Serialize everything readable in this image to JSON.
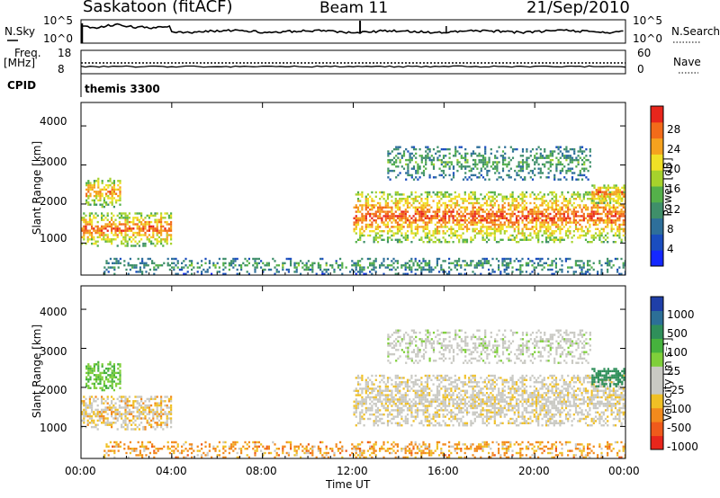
{
  "header": {
    "station": "Saskatoon (fitACF)",
    "beam": "Beam 11",
    "date": "21/Sep/2010"
  },
  "summary_panels": {
    "left_labels": {
      "nsky": "N.Sky",
      "freq": "Freq.",
      "freq_unit": "[MHz]",
      "cpid": "CPID"
    },
    "right_labels": {
      "nsearch": "N.Search",
      "nave": "Nave"
    },
    "noise_ticks_left": [
      "10^5",
      "10^0"
    ],
    "noise_ticks_right": [
      "10^5",
      "10^0"
    ],
    "freq_ticks_left": [
      "18",
      "8"
    ],
    "nave_ticks_right": [
      "60",
      "0"
    ],
    "cpid_text": "themis 3300"
  },
  "power_panel": {
    "colorbar_label": "Power [dB]",
    "colorbar_ticks": [
      "28",
      "24",
      "20",
      "16",
      "12",
      "8",
      "4"
    ],
    "colors": [
      "#1428ff",
      "#1a4dbf",
      "#2e6f9a",
      "#3f8f6a",
      "#54b04a",
      "#a6d22c",
      "#f0e026",
      "#f5a21e",
      "#f26b1a",
      "#e8261c"
    ]
  },
  "velocity_panel": {
    "colorbar_label": "Velocity [m s⁻¹]",
    "colorbar_ticks": [
      "1000",
      "500",
      "100",
      "25",
      "-25",
      "-100",
      "-500",
      "-1000"
    ],
    "colors": [
      "#1f3fa8",
      "#2c6f97",
      "#2f8f5a",
      "#46b23d",
      "#7fcf3a",
      "#c9c9c3",
      "#c9c9c3",
      "#f0c025",
      "#f28a1d",
      "#ef5a1b",
      "#e8261c"
    ]
  },
  "axes": {
    "ylabel": "Slant Range [km]",
    "y_ticks": [
      "1000",
      "2000",
      "3000",
      "4000"
    ],
    "x_ticks": [
      "00:00",
      "04:00",
      "08:00",
      "12:00",
      "16:00",
      "20:00",
      "00:00"
    ],
    "xlabel": "Time UT"
  },
  "chart_data": {
    "type": "heatmap",
    "title": "Saskatoon (fitACF) Beam 11 21/Sep/2010",
    "xlabel": "Time UT",
    "ylabel": "Slant Range [km]",
    "xlim": [
      0,
      24
    ],
    "ylim": [
      180,
      4600
    ],
    "x_ticks": [
      0,
      4,
      8,
      12,
      16,
      20,
      24
    ],
    "y_ticks": [
      1000,
      2000,
      3000,
      4000
    ],
    "panels": [
      {
        "name": "Power [dB]",
        "scale": [
          0,
          32
        ],
        "colorbar_ticks": [
          4,
          8,
          12,
          16,
          20,
          24,
          28
        ]
      },
      {
        "name": "Velocity [m s⁻¹]",
        "scale": [
          -1000,
          1000
        ],
        "colorbar_ticks": [
          -1000,
          -500,
          -100,
          -25,
          25,
          100,
          500,
          1000
        ]
      }
    ],
    "echo_regions": [
      {
        "region": "early main band",
        "t": [
          0.0,
          4.0
        ],
        "range_km": [
          900,
          1800
        ],
        "power_db": 26,
        "velocity_ms": -20
      },
      {
        "region": "early upper band",
        "t": [
          0.2,
          1.8
        ],
        "range_km": [
          1900,
          2700
        ],
        "power_db": 24,
        "velocity_ms": 100
      },
      {
        "region": "evening band",
        "t": [
          12.0,
          24.0
        ],
        "range_km": [
          1000,
          2300
        ],
        "power_db": 27,
        "velocity_ms": 0
      },
      {
        "region": "upper evening band",
        "t": [
          13.5,
          22.5
        ],
        "range_km": [
          2600,
          3500
        ],
        "power_db": 13,
        "velocity_ms": 20
      },
      {
        "region": "near range scatter",
        "t": [
          1.0,
          24.0
        ],
        "range_km": [
          180,
          600
        ],
        "power_db": 12,
        "velocity_ms": -60
      },
      {
        "region": "late upper patch",
        "t": [
          22.5,
          24.0
        ],
        "range_km": [
          2000,
          2500
        ],
        "power_db": 26,
        "velocity_ms": 300
      }
    ]
  }
}
